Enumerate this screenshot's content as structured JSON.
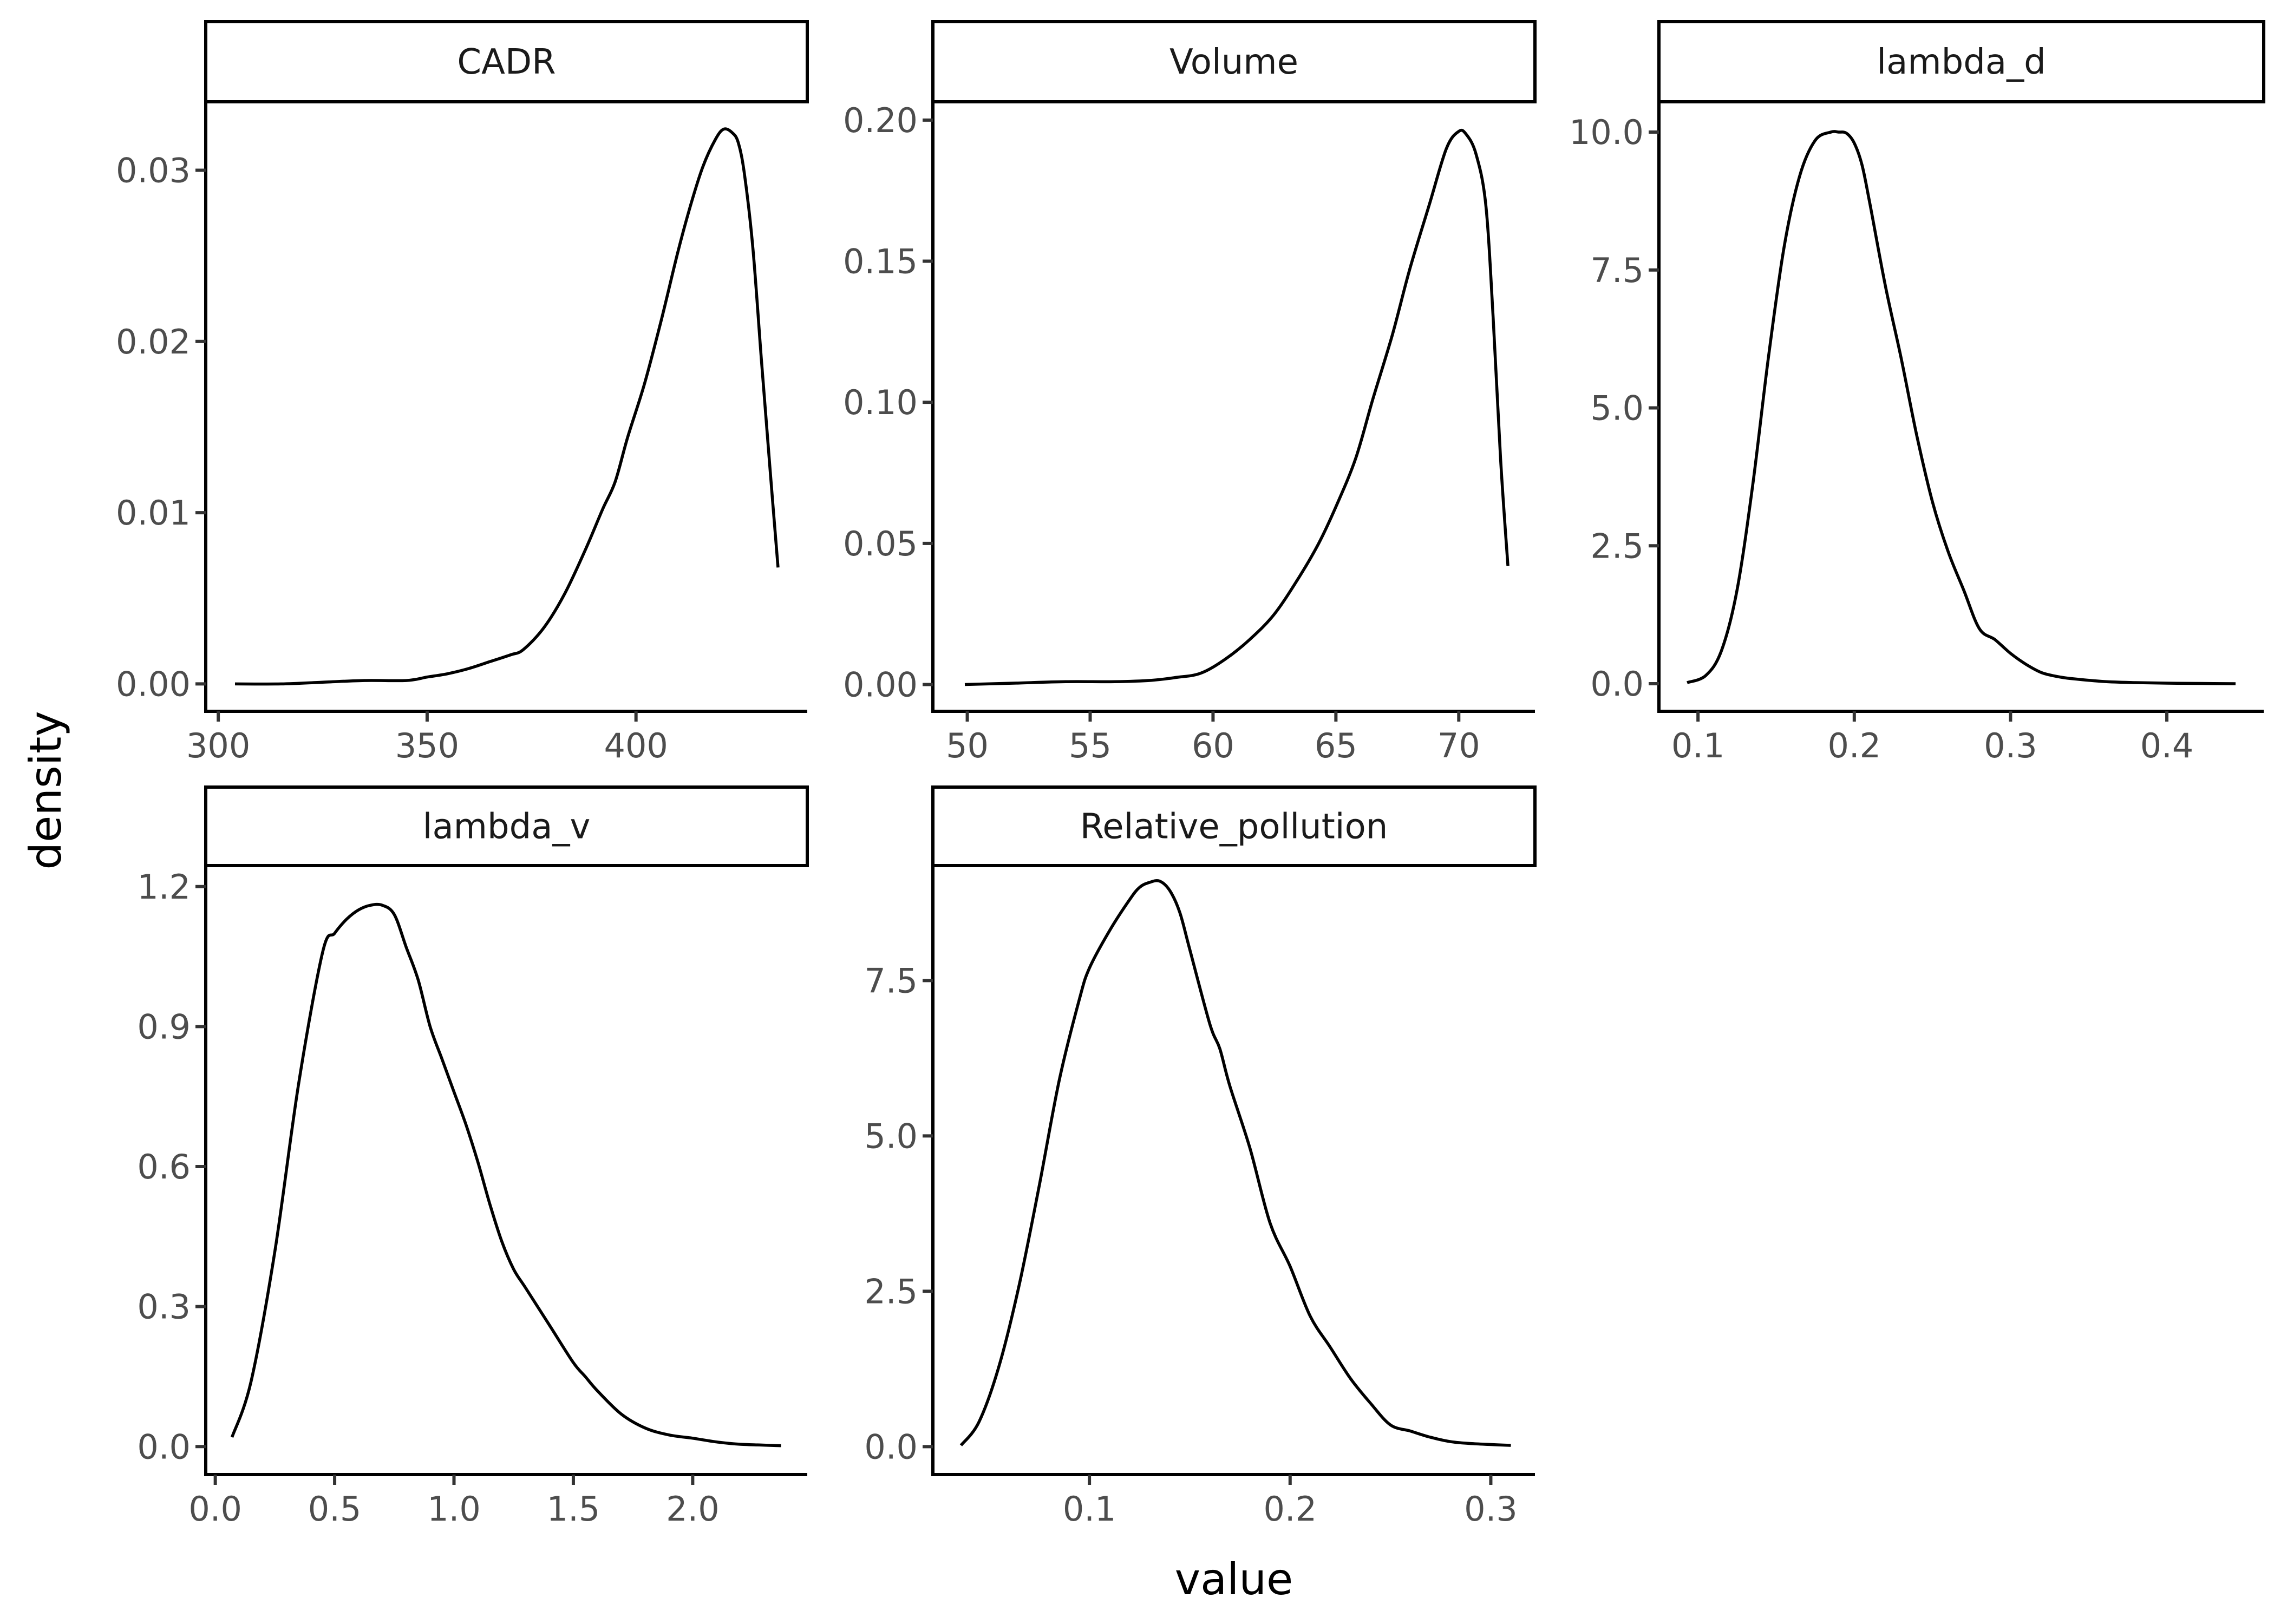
{
  "chart_data": {
    "type": "line",
    "subtype": "faceted density",
    "xlabel": "value",
    "ylabel": "density",
    "grid": false,
    "legend": "none",
    "facets": [
      {
        "title": "CADR",
        "xlim": [
          297,
          441
        ],
        "ylim": [
          -0.0016,
          0.034
        ],
        "xticks": [
          300,
          350,
          400
        ],
        "xtick_labels": [
          "300",
          "350",
          "400"
        ],
        "yticks": [
          0,
          0.01,
          0.02,
          0.03
        ],
        "ytick_labels": [
          "0.00",
          "0.01",
          "0.02",
          "0.03"
        ],
        "x": [
          304,
          315,
          325,
          335,
          345,
          350,
          355,
          360,
          365,
          370,
          373,
          378,
          383,
          388,
          392,
          395,
          398,
          402,
          406,
          410,
          413,
          416,
          419,
          421,
          423,
          424.5,
          426,
          428,
          430,
          432,
          434
        ],
        "y": [
          0.0,
          0.0,
          0.0001,
          0.0002,
          0.0002,
          0.0004,
          0.0006,
          0.0009,
          0.0013,
          0.0017,
          0.002,
          0.0033,
          0.0053,
          0.0079,
          0.0102,
          0.0118,
          0.0144,
          0.0175,
          0.0212,
          0.0252,
          0.0279,
          0.0302,
          0.0318,
          0.0324,
          0.0322,
          0.0316,
          0.0297,
          0.0254,
          0.019,
          0.0128,
          0.0068
        ]
      },
      {
        "title": "Volume",
        "xlim": [
          48.6,
          73.1
        ],
        "ylim": [
          -0.0095,
          0.2065
        ],
        "xticks": [
          50,
          55,
          60,
          65,
          70
        ],
        "xtick_labels": [
          "50",
          "55",
          "60",
          "65",
          "70"
        ],
        "yticks": [
          0,
          0.05,
          0.1,
          0.15,
          0.2
        ],
        "ytick_labels": [
          "0.00",
          "0.05",
          "0.10",
          "0.15",
          "0.20"
        ],
        "x": [
          49.9,
          52,
          54,
          56,
          57.5,
          58.5,
          59.5,
          60.5,
          61.5,
          62.5,
          63.5,
          64.3,
          65,
          65.8,
          66.5,
          67.3,
          68,
          68.8,
          69.5,
          70,
          70.3,
          70.7,
          71.1,
          71.4,
          71.7,
          72.0
        ],
        "y": [
          0.0,
          0.0005,
          0.001,
          0.001,
          0.0015,
          0.0025,
          0.004,
          0.009,
          0.016,
          0.025,
          0.038,
          0.05,
          0.063,
          0.08,
          0.101,
          0.124,
          0.147,
          0.17,
          0.19,
          0.196,
          0.195,
          0.188,
          0.17,
          0.13,
          0.08,
          0.042
        ]
      },
      {
        "title": "lambda_d",
        "xlim": [
          0.075,
          0.462
        ],
        "ylim": [
          -0.5,
          10.55
        ],
        "xticks": [
          0.1,
          0.2,
          0.3,
          0.4
        ],
        "xtick_labels": [
          "0.1",
          "0.2",
          "0.3",
          "0.4"
        ],
        "yticks": [
          0,
          2.5,
          5.0,
          7.5,
          10.0
        ],
        "ytick_labels": [
          "0.0",
          "2.5",
          "5.0",
          "7.5",
          "10.0"
        ],
        "x": [
          0.093,
          0.105,
          0.115,
          0.125,
          0.135,
          0.145,
          0.155,
          0.165,
          0.175,
          0.185,
          0.19,
          0.195,
          0.2,
          0.205,
          0.21,
          0.22,
          0.23,
          0.24,
          0.25,
          0.26,
          0.27,
          0.28,
          0.29,
          0.3,
          0.31,
          0.32,
          0.33,
          0.34,
          0.36,
          0.38,
          0.4,
          0.42,
          0.444
        ],
        "y": [
          0.02,
          0.15,
          0.6,
          1.7,
          3.6,
          5.9,
          7.9,
          9.2,
          9.85,
          10.0,
          10.0,
          9.98,
          9.8,
          9.4,
          8.7,
          7.2,
          5.9,
          4.5,
          3.3,
          2.4,
          1.7,
          1.0,
          0.8,
          0.55,
          0.35,
          0.2,
          0.13,
          0.09,
          0.04,
          0.02,
          0.01,
          0.005,
          0.0
        ]
      },
      {
        "title": "lambda_v",
        "xlim": [
          -0.04,
          2.48
        ],
        "ylim": [
          -0.06,
          1.245
        ],
        "xticks": [
          0.0,
          0.5,
          1.0,
          1.5,
          2.0
        ],
        "xtick_labels": [
          "0.0",
          "0.5",
          "1.0",
          "1.5",
          "2.0"
        ],
        "yticks": [
          0,
          0.3,
          0.6,
          0.9,
          1.2
        ],
        "ytick_labels": [
          "0.0",
          "0.3",
          "0.6",
          "0.9",
          "1.2"
        ],
        "x": [
          0.07,
          0.15,
          0.25,
          0.35,
          0.45,
          0.5,
          0.55,
          0.6,
          0.65,
          0.7,
          0.75,
          0.8,
          0.85,
          0.9,
          0.95,
          1.0,
          1.05,
          1.1,
          1.15,
          1.2,
          1.25,
          1.3,
          1.4,
          1.5,
          1.55,
          1.6,
          1.7,
          1.8,
          1.9,
          2.0,
          2.1,
          2.2,
          2.37
        ],
        "y": [
          0.02,
          0.14,
          0.42,
          0.78,
          1.06,
          1.1,
          1.13,
          1.15,
          1.16,
          1.16,
          1.14,
          1.07,
          1.0,
          0.9,
          0.83,
          0.76,
          0.69,
          0.61,
          0.52,
          0.44,
          0.38,
          0.34,
          0.26,
          0.18,
          0.15,
          0.12,
          0.07,
          0.04,
          0.025,
          0.018,
          0.01,
          0.005,
          0.002
        ]
      },
      {
        "title": "Relative_pollution",
        "xlim": [
          0.022,
          0.322
        ],
        "ylim": [
          -0.45,
          9.35
        ],
        "xticks": [
          0.1,
          0.2,
          0.3
        ],
        "xtick_labels": [
          "0.1",
          "0.2",
          "0.3"
        ],
        "yticks": [
          0,
          2.5,
          5.0,
          7.5
        ],
        "ytick_labels": [
          "0.0",
          "2.5",
          "5.0",
          "7.5"
        ],
        "x": [
          0.036,
          0.045,
          0.055,
          0.065,
          0.075,
          0.085,
          0.095,
          0.1,
          0.11,
          0.12,
          0.125,
          0.13,
          0.135,
          0.14,
          0.145,
          0.15,
          0.16,
          0.165,
          0.17,
          0.18,
          0.19,
          0.2,
          0.21,
          0.22,
          0.23,
          0.24,
          0.25,
          0.26,
          0.27,
          0.28,
          0.29,
          0.31
        ],
        "y": [
          0.02,
          0.4,
          1.3,
          2.6,
          4.2,
          5.9,
          7.2,
          7.7,
          8.3,
          8.8,
          9.0,
          9.08,
          9.1,
          8.95,
          8.6,
          8.0,
          6.8,
          6.4,
          5.8,
          4.8,
          3.6,
          2.9,
          2.1,
          1.6,
          1.1,
          0.7,
          0.35,
          0.25,
          0.15,
          0.08,
          0.05,
          0.02
        ]
      }
    ]
  }
}
